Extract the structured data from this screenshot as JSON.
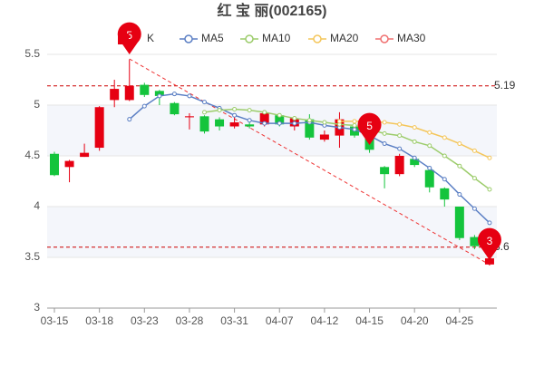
{
  "chart_data": {
    "type": "candlestick",
    "title": "红 宝 丽(002165)",
    "categories": [
      "03-15",
      null,
      null,
      "03-18",
      null,
      null,
      "03-23",
      null,
      null,
      "03-28",
      null,
      null,
      "03-31",
      null,
      null,
      "04-07",
      null,
      null,
      "04-12",
      null,
      null,
      "04-15",
      null,
      null,
      "04-20",
      null,
      null,
      "04-25",
      null,
      null
    ],
    "candles": {
      "name": "K",
      "up_color": "#e60012",
      "down_color": "#14c43c",
      "open": [
        4.52,
        4.39,
        4.49,
        4.58,
        5.05,
        5.05,
        5.2,
        5.14,
        5.02,
        4.88,
        4.89,
        4.86,
        4.79,
        4.81,
        4.81,
        4.9,
        4.79,
        4.86,
        4.66,
        4.7,
        4.79,
        4.71,
        4.39,
        4.32,
        4.47,
        4.36,
        4.18,
        4.0,
        3.7,
        3.43
      ],
      "close": [
        4.31,
        4.45,
        4.53,
        4.98,
        5.16,
        5.19,
        5.1,
        5.09,
        4.91,
        4.89,
        4.74,
        4.79,
        4.83,
        4.79,
        4.92,
        4.81,
        4.87,
        4.68,
        4.71,
        4.86,
        4.7,
        4.56,
        4.32,
        4.5,
        4.41,
        4.19,
        4.07,
        3.69,
        3.61,
        3.49
      ],
      "high": [
        4.54,
        4.46,
        4.62,
        4.99,
        5.25,
        5.45,
        5.22,
        5.15,
        5.03,
        4.92,
        4.9,
        4.88,
        4.92,
        4.83,
        4.93,
        4.91,
        4.89,
        4.91,
        4.75,
        4.93,
        4.81,
        4.72,
        4.4,
        4.52,
        4.49,
        4.37,
        4.19,
        4.0,
        3.72,
        3.55
      ],
      "low": [
        4.3,
        4.24,
        4.49,
        4.55,
        4.98,
        5.04,
        5.08,
        5.0,
        4.9,
        4.76,
        4.72,
        4.75,
        4.77,
        4.77,
        4.79,
        4.79,
        4.75,
        4.66,
        4.64,
        4.58,
        4.68,
        4.53,
        4.18,
        4.3,
        4.39,
        4.14,
        4.0,
        3.67,
        3.58,
        3.42
      ]
    },
    "series": [
      {
        "name": "MA5",
        "color": "#5b7fc4",
        "values": [
          null,
          null,
          null,
          null,
          null,
          4.86,
          4.99,
          5.09,
          5.11,
          5.09,
          5.03,
          4.97,
          4.9,
          4.85,
          4.82,
          4.82,
          4.82,
          4.83,
          4.8,
          4.78,
          4.76,
          4.7,
          4.62,
          4.57,
          4.48,
          4.38,
          4.27,
          4.12,
          3.98,
          3.84
        ]
      },
      {
        "name": "MA10",
        "color": "#9ccc6b",
        "values": [
          null,
          null,
          null,
          null,
          null,
          null,
          null,
          null,
          null,
          null,
          4.93,
          4.95,
          4.96,
          4.95,
          4.93,
          4.9,
          4.87,
          4.85,
          4.83,
          4.81,
          4.8,
          4.76,
          4.72,
          4.7,
          4.64,
          4.6,
          4.5,
          4.4,
          4.28,
          4.17
        ]
      },
      {
        "name": "MA20",
        "color": "#f4c65a",
        "values": [
          null,
          null,
          null,
          null,
          null,
          null,
          null,
          null,
          null,
          null,
          null,
          null,
          null,
          null,
          null,
          null,
          null,
          null,
          null,
          4.84,
          4.84,
          4.84,
          4.83,
          4.81,
          4.78,
          4.73,
          4.68,
          4.62,
          4.55,
          4.48
        ]
      },
      {
        "name": "MA30",
        "color": "#f07070",
        "values": [
          null,
          null,
          null,
          null,
          null,
          null,
          null,
          null,
          null,
          null,
          null,
          null,
          null,
          null,
          null,
          null,
          null,
          null,
          null,
          null,
          null,
          null,
          null,
          null,
          null,
          null,
          null,
          null,
          null,
          null
        ]
      }
    ],
    "ylim": [
      3,
      5.5
    ],
    "yticks": [
      3,
      3.5,
      4,
      4.5,
      5,
      5.5
    ],
    "ref_lines": [
      {
        "value": 5.19,
        "label": "5.19"
      },
      {
        "value": 3.6,
        "label": "3.6"
      }
    ],
    "annotations": [
      "5",
      "5",
      "3"
    ]
  }
}
